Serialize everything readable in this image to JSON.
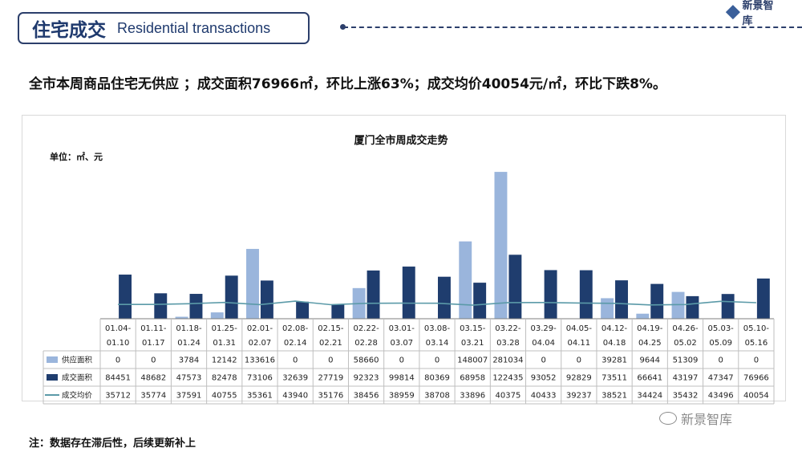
{
  "header": {
    "title_cn": "住宅成交",
    "title_en": "Residential transactions",
    "logo_text": "新景智库"
  },
  "summary": "全市本周商品住宅无供应 ；成交面积76966㎡，环比上涨63%；成交均价40054元/㎡，环比下跌8%。",
  "footnote": "注：数据存在滞后性，后续更新补上",
  "watermark": "新景智库",
  "chart_data": {
    "type": "bar",
    "title": "厦门全市周成交走势",
    "unit": "单位：㎡、元",
    "categories": [
      [
        "01.04-",
        "01.10"
      ],
      [
        "01.11-",
        "01.17"
      ],
      [
        "01.18-",
        "01.24"
      ],
      [
        "01.25-",
        "01.31"
      ],
      [
        "02.01-",
        "02.07"
      ],
      [
        "02.08-",
        "02.14"
      ],
      [
        "02.15-",
        "02.21"
      ],
      [
        "02.22-",
        "02.28"
      ],
      [
        "03.01-",
        "03.07"
      ],
      [
        "03.08-",
        "03.14"
      ],
      [
        "03.15-",
        "03.21"
      ],
      [
        "03.22-",
        "03.28"
      ],
      [
        "03.29-",
        "04.04"
      ],
      [
        "04.05-",
        "04.11"
      ],
      [
        "04.12-",
        "04.18"
      ],
      [
        "04.19-",
        "04.25"
      ],
      [
        "04.26-",
        "05.02"
      ],
      [
        "05.03-",
        "05.09"
      ],
      [
        "05.10-",
        "05.16"
      ]
    ],
    "series": [
      {
        "name": "供应面积",
        "type": "bar",
        "color": "#9ab5dc",
        "values": [
          0,
          0,
          3784,
          12142,
          133616,
          0,
          0,
          58660,
          0,
          0,
          148007,
          281034,
          0,
          0,
          39281,
          9644,
          51309,
          0,
          0
        ]
      },
      {
        "name": "成交面积",
        "type": "bar",
        "color": "#1f3d6e",
        "values": [
          84451,
          48682,
          47573,
          82478,
          73106,
          32639,
          27719,
          92323,
          99814,
          80369,
          68958,
          122435,
          93052,
          92829,
          73511,
          66641,
          43197,
          47347,
          76966
        ]
      },
      {
        "name": "成交均价",
        "type": "line",
        "color": "#5b9aa8",
        "values": [
          35712,
          35774,
          37591,
          40755,
          35361,
          43940,
          35176,
          38456,
          38959,
          38708,
          33896,
          40375,
          40433,
          39237,
          38521,
          34424,
          35432,
          43496,
          40054
        ]
      }
    ],
    "ylim_area": [
      0,
      295000
    ],
    "ylim_price": [
      0,
      385000
    ],
    "grid": false,
    "legend": "table-left"
  }
}
